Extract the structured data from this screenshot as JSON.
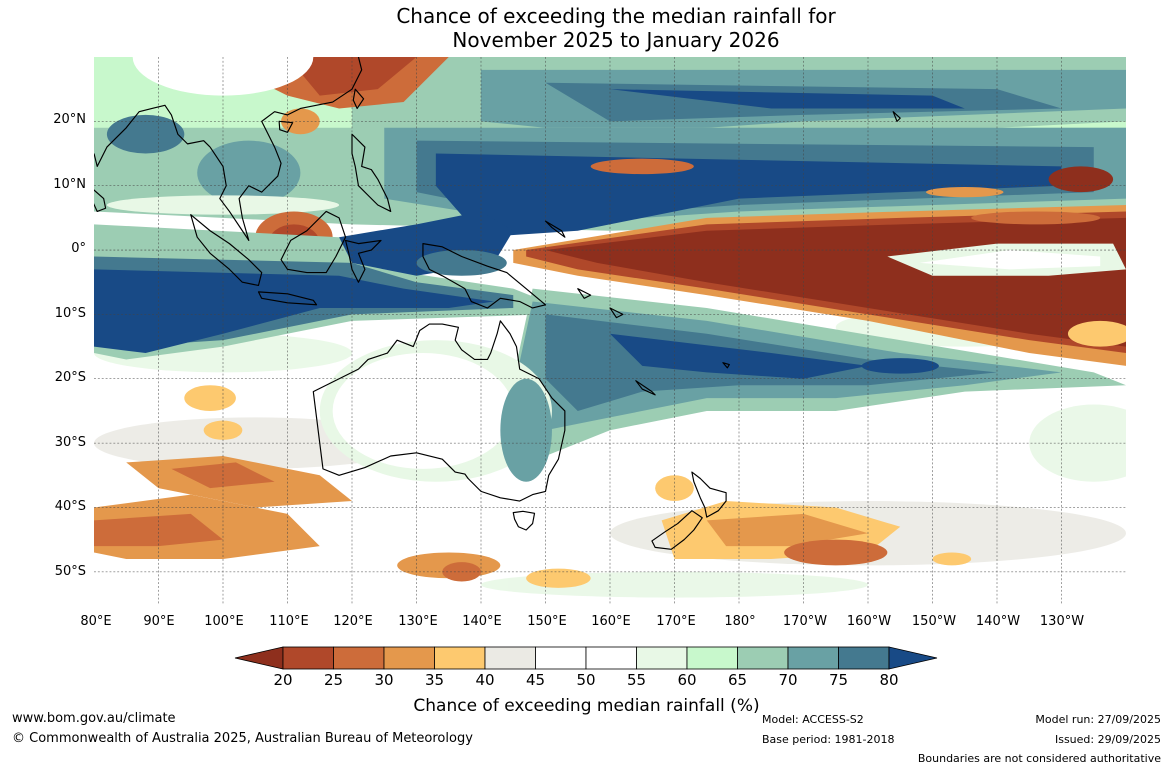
{
  "title": {
    "line1": "Chance of exceeding the median rainfall for",
    "line2": "November 2025 to January 2026"
  },
  "map": {
    "lat_ticks": [
      "20°N",
      "10°N",
      "0°",
      "10°S",
      "20°S",
      "30°S",
      "40°S",
      "50°S"
    ],
    "lon_ticks": [
      "80°E",
      "90°E",
      "100°E",
      "110°E",
      "120°E",
      "130°E",
      "140°E",
      "150°E",
      "160°E",
      "170°E",
      "180°",
      "170°W",
      "160°W",
      "150°W",
      "140°W",
      "130°W"
    ],
    "lat_range": [
      -55,
      30
    ],
    "lon_range": [
      80,
      240
    ],
    "gridlines": true
  },
  "colorbar": {
    "labels": [
      "20",
      "25",
      "30",
      "35",
      "40",
      "45",
      "50",
      "55",
      "60",
      "65",
      "70",
      "75",
      "80"
    ],
    "colors": [
      "#8e2f1d",
      "#b0482a",
      "#cd6c3a",
      "#e4984c",
      "#fdc96f",
      "#ebeae4",
      "#ffffff",
      "#ffffff",
      "#e8f8e6",
      "#c8f8cc",
      "#9ccdb3",
      "#69a1a4",
      "#44798f",
      "#184a86"
    ],
    "title": "Chance of exceeding median rainfall (%)"
  },
  "footer": {
    "website": "www.bom.gov.au/climate",
    "copyright": "© Commonwealth of Australia 2025, Australian Bureau of Meteorology",
    "model": "Model: ACCESS-S2",
    "base_period": "Base period: 1981-2018",
    "model_run": "Model run: 27/09/2025",
    "issued": "Issued: 29/09/2025",
    "disclaimer": "Boundaries are not considered authoritative"
  }
}
